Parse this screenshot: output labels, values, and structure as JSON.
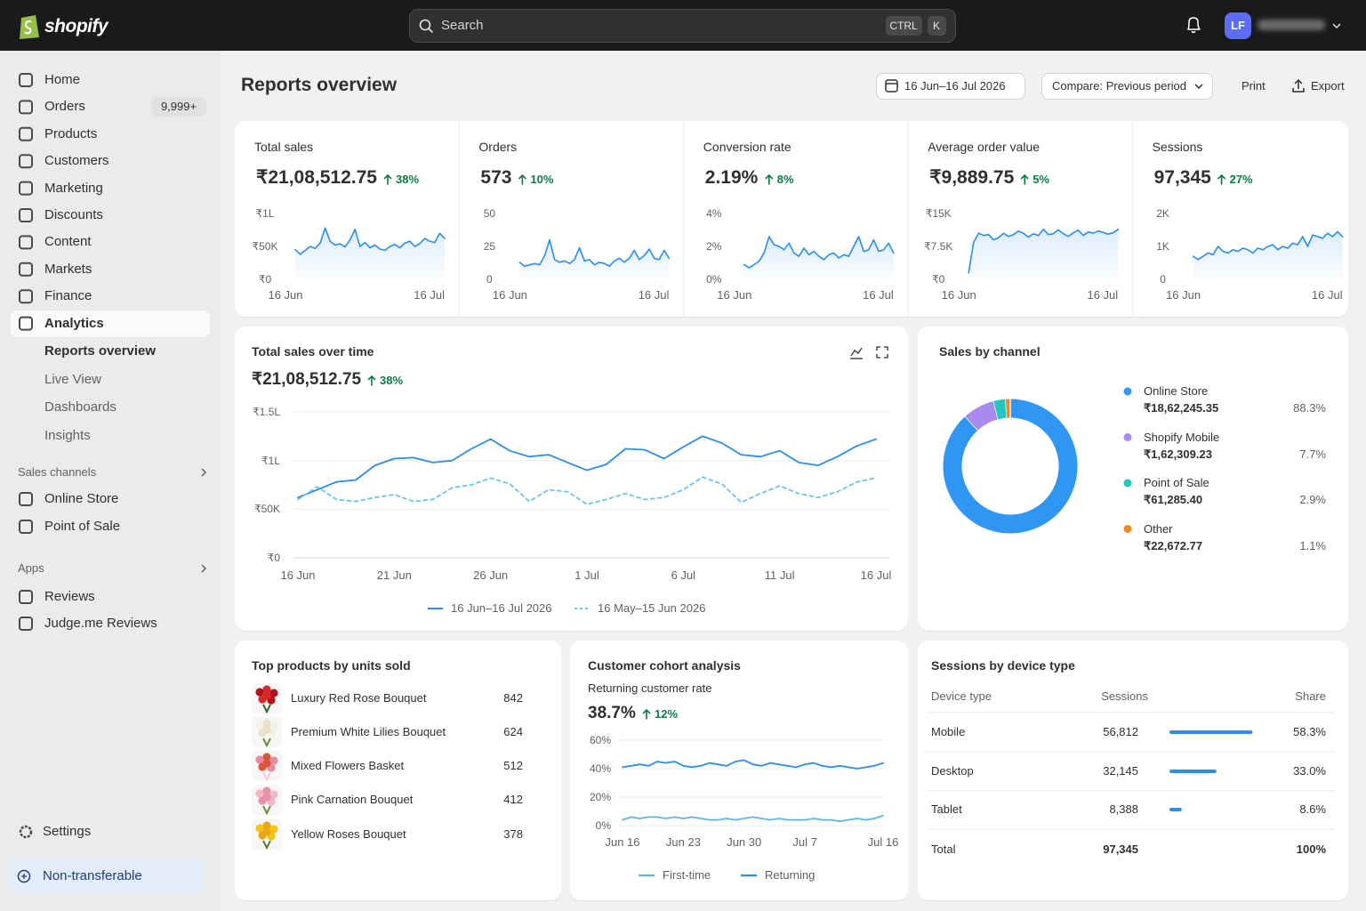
{
  "topbar": {
    "brand": "shopify",
    "search": "Search",
    "shortcut": [
      "CTRL",
      "K"
    ],
    "avatar": "LF"
  },
  "sidebar": {
    "nav": [
      {
        "label": "Home"
      },
      {
        "label": "Orders",
        "badge": "9,999+"
      },
      {
        "label": "Products"
      },
      {
        "label": "Customers"
      },
      {
        "label": "Marketing"
      },
      {
        "label": "Discounts"
      },
      {
        "label": "Content"
      },
      {
        "label": "Markets"
      },
      {
        "label": "Finance"
      },
      {
        "label": "Analytics"
      }
    ],
    "analytics": [
      "Reports overview",
      "Live View",
      "Dashboards",
      "Insights"
    ],
    "sales_channels": {
      "title": "Sales channels",
      "items": [
        "Online Store",
        "Point of Sale"
      ]
    },
    "apps": {
      "title": "Apps",
      "items": [
        "Reviews",
        "Judge.me Reviews"
      ]
    },
    "settings": "Settings",
    "footer": "Non-transferable"
  },
  "header": {
    "title": "Reports overview",
    "date_range": "16 Jun–16 Jul 2026",
    "compare": "Compare: Previous period",
    "print": "Print",
    "export": "Export"
  },
  "kpis": [
    {
      "label": "Total sales",
      "value": "₹21,08,512.75",
      "change": "38%",
      "ylim": [
        0,
        100000
      ],
      "yticks": [
        {
          "value": 0,
          "label": "₹0"
        },
        {
          "value": 50000,
          "label": "₹50K"
        },
        {
          "value": 100000,
          "label": "₹1L"
        }
      ],
      "x_labels": [
        "16 Jun",
        "16 Jul"
      ],
      "values": [
        45000,
        38000,
        44000,
        50000,
        47000,
        55000,
        78000,
        58000,
        52000,
        54000,
        49000,
        60000,
        76000,
        50000,
        56000,
        48000,
        52000,
        46000,
        44000,
        50000,
        53000,
        48000,
        55000,
        58000,
        50000,
        54000,
        62000,
        58000,
        56000,
        70000,
        62000
      ]
    },
    {
      "label": "Orders",
      "value": "573",
      "change": "10%",
      "ylim": [
        0,
        50
      ],
      "yticks": [
        0,
        25,
        50
      ],
      "x_labels": [
        "16 Jun",
        "16 Jul"
      ],
      "values": [
        13,
        10,
        11,
        12,
        11,
        18,
        30,
        15,
        13,
        14,
        12,
        15,
        24,
        14,
        15,
        11,
        13,
        12,
        10,
        14,
        16,
        13,
        16,
        22,
        15,
        18,
        23,
        16,
        15,
        22,
        16
      ]
    },
    {
      "label": "Conversion rate",
      "value": "2.19%",
      "change": "8%",
      "ylim": [
        0,
        4
      ],
      "yticks": [
        {
          "value": 0,
          "label": "0%"
        },
        {
          "value": 2,
          "label": "2%"
        },
        {
          "value": 4,
          "label": "4%"
        }
      ],
      "x_labels": [
        "16 Jun",
        "16 Jul"
      ],
      "values": [
        0.9,
        0.7,
        0.9,
        1.1,
        1.6,
        2.6,
        2.1,
        2.0,
        1.8,
        2.2,
        1.6,
        1.4,
        1.9,
        1.5,
        1.7,
        1.4,
        1.2,
        1.5,
        1.6,
        1.3,
        1.5,
        1.4,
        2.0,
        2.6,
        1.7,
        1.8,
        2.4,
        1.7,
        1.8,
        2.2,
        1.6
      ]
    },
    {
      "label": "Average order value",
      "value": "₹9,889.75",
      "change": "5%",
      "ylim": [
        0,
        15000
      ],
      "yticks": [
        {
          "value": 0,
          "label": "₹0"
        },
        {
          "value": 7500,
          "label": "₹7.5K"
        },
        {
          "value": 15000,
          "label": "₹15K"
        }
      ],
      "x_labels": [
        "16 Jun",
        "16 Jul"
      ],
      "values": [
        1500,
        8500,
        10500,
        10000,
        10200,
        9000,
        9500,
        10500,
        9800,
        10200,
        11000,
        10500,
        9600,
        10400,
        10000,
        11400,
        10200,
        10400,
        11300,
        10400,
        9800,
        10600,
        11200,
        10000,
        10800,
        10500,
        11000,
        10700,
        10300,
        10600,
        11400
      ]
    },
    {
      "label": "Sessions",
      "value": "97,345",
      "change": "27%",
      "ylim": [
        0,
        2000
      ],
      "yticks": [
        0,
        {
          "value": 1000,
          "label": "1K"
        },
        {
          "value": 2000,
          "label": "2K"
        }
      ],
      "x_labels": [
        "16 Jun",
        "16 Jul"
      ],
      "values": [
        700,
        600,
        700,
        800,
        750,
        1000,
        850,
        800,
        900,
        850,
        950,
        900,
        800,
        950,
        900,
        1000,
        1050,
        900,
        1000,
        950,
        1100,
        1050,
        1300,
        1000,
        1350,
        1300,
        1250,
        1400,
        1300,
        1450,
        1300
      ]
    }
  ],
  "sales_over_time": {
    "type": "line",
    "title": "Total sales over time",
    "value": "₹21,08,512.75",
    "change": "38%",
    "ylim": [
      0,
      150000
    ],
    "yticks": [
      {
        "value": 0,
        "label": "₹0"
      },
      {
        "value": 50000,
        "label": "₹50K"
      },
      {
        "value": 100000,
        "label": "₹1L"
      },
      {
        "value": 150000,
        "label": "₹1.5L"
      }
    ],
    "grid": true,
    "categories": [
      "16 Jun",
      null,
      null,
      null,
      null,
      "21 Jun",
      null,
      null,
      null,
      null,
      "26 Jun",
      null,
      null,
      null,
      null,
      "1 Jul",
      null,
      null,
      null,
      null,
      "6 Jul",
      null,
      null,
      null,
      null,
      "11 Jul",
      null,
      null,
      null,
      null,
      "16 Jul"
    ],
    "series": [
      {
        "name": "16 Jun–16 Jul 2026",
        "color": "#2b8ded",
        "dashed": false,
        "values": [
          62000,
          70000,
          78000,
          80000,
          95000,
          102000,
          103000,
          98000,
          100000,
          112000,
          122000,
          110000,
          104000,
          106000,
          98000,
          90000,
          96000,
          112000,
          111000,
          102000,
          114000,
          125000,
          118000,
          106000,
          104000,
          110000,
          98000,
          95000,
          104000,
          115000,
          122000
        ]
      },
      {
        "name": "16 May–15 Jun 2026",
        "color": "#6cc2f0",
        "dashed": true,
        "values": [
          60000,
          73000,
          60000,
          58000,
          62000,
          65000,
          58000,
          60000,
          72000,
          75000,
          82000,
          76000,
          58000,
          70000,
          68000,
          55000,
          60000,
          66000,
          60000,
          62000,
          70000,
          83000,
          76000,
          57000,
          66000,
          74000,
          66000,
          62000,
          68000,
          78000,
          82000
        ]
      }
    ]
  },
  "sales_by_channel": {
    "type": "pie",
    "title": "Sales by channel",
    "categories": [
      "Online Store",
      "Shopify Mobile",
      "Point of Sale",
      "Other"
    ],
    "amounts": [
      "₹18,62,245.35",
      "₹1,62,309.23",
      "₹61,285.40",
      "₹22,672.77"
    ],
    "values": [
      88.3,
      7.7,
      2.9,
      1.1
    ],
    "value_labels": [
      "88.3%",
      "7.7%",
      "2.9%",
      "1.1%"
    ],
    "colors": [
      "#2f96f3",
      "#a98bf0",
      "#1fc8c0",
      "#f08a24"
    ]
  },
  "top_products": {
    "title": "Top products by units sold",
    "items": [
      {
        "name": "Luxury Red Rose Bouquet",
        "units": 842
      },
      {
        "name": "Premium White Lilies Bouquet",
        "units": 624
      },
      {
        "name": "Mixed Flowers Basket",
        "units": 512
      },
      {
        "name": "Pink Carnation Bouquet",
        "units": 412
      },
      {
        "name": "Yellow Roses Bouquet",
        "units": 378
      }
    ]
  },
  "cohort": {
    "type": "line",
    "title": "Customer cohort analysis",
    "subtitle": "Returning customer rate",
    "value": "38.7%",
    "change": "12%",
    "ylim": [
      0,
      60
    ],
    "yticks": [
      {
        "value": 0,
        "label": "0%"
      },
      {
        "value": 20,
        "label": "20%"
      },
      {
        "value": 40,
        "label": "40%"
      },
      {
        "value": 60,
        "label": "60%"
      }
    ],
    "grid": true,
    "categories": [
      "Jun 16",
      null,
      null,
      null,
      null,
      null,
      null,
      "Jun 23",
      null,
      null,
      null,
      null,
      null,
      null,
      "Jun 30",
      null,
      null,
      null,
      null,
      null,
      null,
      "Jul 7",
      null,
      null,
      null,
      null,
      null,
      null,
      null,
      null,
      "Jul 16"
    ],
    "series": [
      {
        "name": "First-time",
        "color": "#5ab6f2",
        "values": [
          4,
          6,
          5,
          6,
          6,
          5,
          6,
          5,
          6,
          5,
          4,
          4,
          5,
          4,
          5,
          6,
          5,
          4,
          5,
          4,
          4,
          4,
          5,
          4,
          4,
          3,
          4,
          5,
          4,
          5,
          7
        ]
      },
      {
        "name": "Returning",
        "color": "#2b8ded",
        "values": [
          41,
          42,
          43,
          42,
          45,
          44,
          45,
          42,
          41,
          42,
          44,
          43,
          42,
          45,
          46,
          43,
          42,
          44,
          43,
          42,
          41,
          43,
          44,
          42,
          41,
          42,
          41,
          40,
          41,
          42,
          44
        ]
      }
    ]
  },
  "sessions_by_device": {
    "title": "Sessions by device type",
    "columns": [
      "Device type",
      "Sessions",
      "Share"
    ],
    "rows": [
      {
        "device": "Mobile",
        "sessions": "56,812",
        "share": 58.3,
        "share_label": "58.3%"
      },
      {
        "device": "Desktop",
        "sessions": "32,145",
        "share": 33.0,
        "share_label": "33.0%"
      },
      {
        "device": "Tablet",
        "sessions": "8,388",
        "share": 8.6,
        "share_label": "8.6%"
      }
    ],
    "total": {
      "device": "Total",
      "sessions": "97,345",
      "share_label": "100%"
    }
  }
}
